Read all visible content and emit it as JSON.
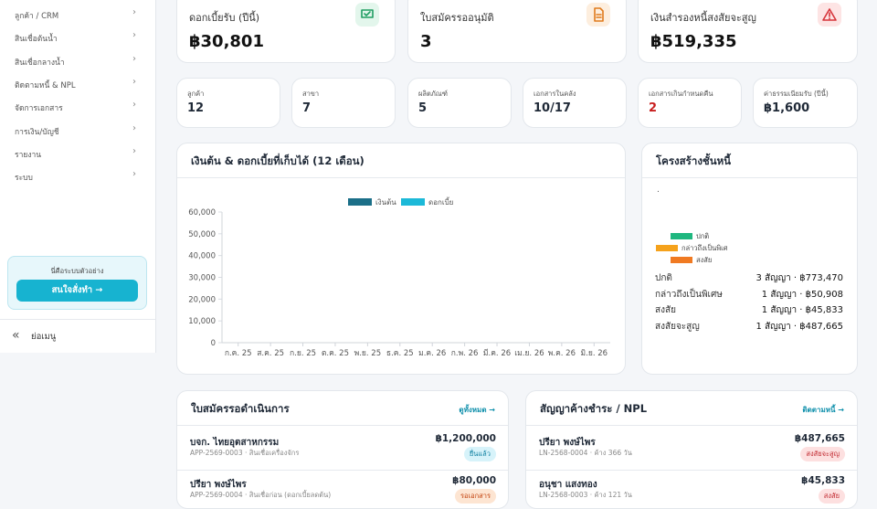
{
  "sidebar": {
    "menu": [
      "ลูกค้า / CRM",
      "สินเชื่อต้นน้ำ",
      "สินเชื่อกลางน้ำ",
      "ติดตามหนี้ & NPL",
      "จัดการเอกสาร",
      "การเงิน/บัญชี",
      "รายงาน",
      "ระบบ"
    ],
    "promo": {
      "text": "นี่คือระบบตัวอย่าง",
      "button": "สนใจสั่งทำ →"
    },
    "collapse": "ย่อเมนู"
  },
  "kpis": [
    {
      "label": "ดอกเบี้ยรับ (ปีนี้)",
      "value": "฿30,801"
    },
    {
      "label": "ใบสมัครรออนุมัติ",
      "value": "3"
    },
    {
      "label": "เงินสำรองหนี้สงสัยจะสูญ",
      "value": "฿519,335"
    }
  ],
  "stats": [
    {
      "label": "ลูกค้า",
      "value": "12"
    },
    {
      "label": "สาขา",
      "value": "7"
    },
    {
      "label": "ผลิตภัณฑ์",
      "value": "5"
    },
    {
      "label": "เอกสารในคลัง",
      "value": "10/17"
    },
    {
      "label": "เอกสารเกินกำหนดคืน",
      "value": "2"
    },
    {
      "label": "ค่าธรรมเนียมรับ (ปีนี้)",
      "value": "฿1,600"
    }
  ],
  "chart_data": {
    "type": "bar",
    "title": "เงินต้น & ดอกเบี้ยที่เก็บได้ (12 เดือน)",
    "categories": [
      "ก.ค. 25",
      "ส.ค. 25",
      "ก.ย. 25",
      "ต.ค. 25",
      "พ.ย. 25",
      "ธ.ค. 25",
      "ม.ค. 26",
      "ก.พ. 26",
      "มี.ค. 26",
      "เม.ย. 26",
      "พ.ค. 26",
      "มิ.ย. 26"
    ],
    "series": [
      {
        "name": "เงินต้น",
        "color": "#1b6f88",
        "values": [
          0,
          0,
          0,
          0,
          0,
          0,
          0,
          0,
          0,
          0,
          0,
          0
        ]
      },
      {
        "name": "ดอกเบี้ย",
        "color": "#1cb9d8",
        "values": [
          0,
          0,
          0,
          0,
          0,
          0,
          0,
          0,
          0,
          0,
          0,
          0
        ]
      }
    ],
    "ylim": [
      0,
      60000
    ],
    "yticks": [
      0,
      {
        "value": 10000,
        "label": "10,000"
      },
      {
        "value": 20000,
        "label": "20,000"
      },
      {
        "value": 30000,
        "label": "30,000"
      },
      {
        "value": 40000,
        "label": "40,000"
      },
      {
        "value": 50000,
        "label": "50,000"
      },
      {
        "value": 60000,
        "label": "60,000"
      }
    ],
    "grid": false,
    "legend": "top"
  },
  "debt": {
    "title": "โครงสร้างชั้นหนี้",
    "mark": ".",
    "colors": [
      "#1fb77f",
      "#f5a21c",
      "#f07a22"
    ],
    "rows": [
      {
        "label": "ปกติ",
        "value": "3 สัญญา · ฿773,470"
      },
      {
        "label": "กล่าวถึงเป็นพิเศษ",
        "value": "1 สัญญา · ฿50,908"
      },
      {
        "label": "สงสัย",
        "value": "1 สัญญา · ฿45,833"
      },
      {
        "label": "สงสัยจะสูญ",
        "value": "1 สัญญา · ฿487,665"
      }
    ]
  },
  "applications": {
    "title": "ใบสมัครรอดำเนินการ",
    "link": "ดูทั้งหมด →",
    "rows": [
      {
        "name": "บจก. ไทยอุตสาหกรรม",
        "detail": "APP-2569-0003 · สินเชื่อเครื่องจักร",
        "amount": "฿1,200,000",
        "status": "ยื่นแล้ว"
      },
      {
        "name": "ปรียา พงษ์ไพร",
        "detail": "APP-2569-0004 · สินเชื่อก่อน (ดอกเบี้ยลดต้น)",
        "amount": "฿80,000",
        "status": "รอเอกสาร"
      }
    ]
  },
  "overdue": {
    "title": "สัญญาค้างชำระ / NPL",
    "link": "ติดตามหนี้ →",
    "rows": [
      {
        "name": "ปรียา พงษ์ไพร",
        "detail": "LN-2568-0004 · ค้าง 366 วัน",
        "amount": "฿487,665",
        "status": "สงสัยจะสูญ"
      },
      {
        "name": "อนุชา แสงทอง",
        "detail": "LN-2568-0003 · ค้าง 121 วัน",
        "amount": "฿45,833",
        "status": "สงสัย"
      }
    ]
  }
}
